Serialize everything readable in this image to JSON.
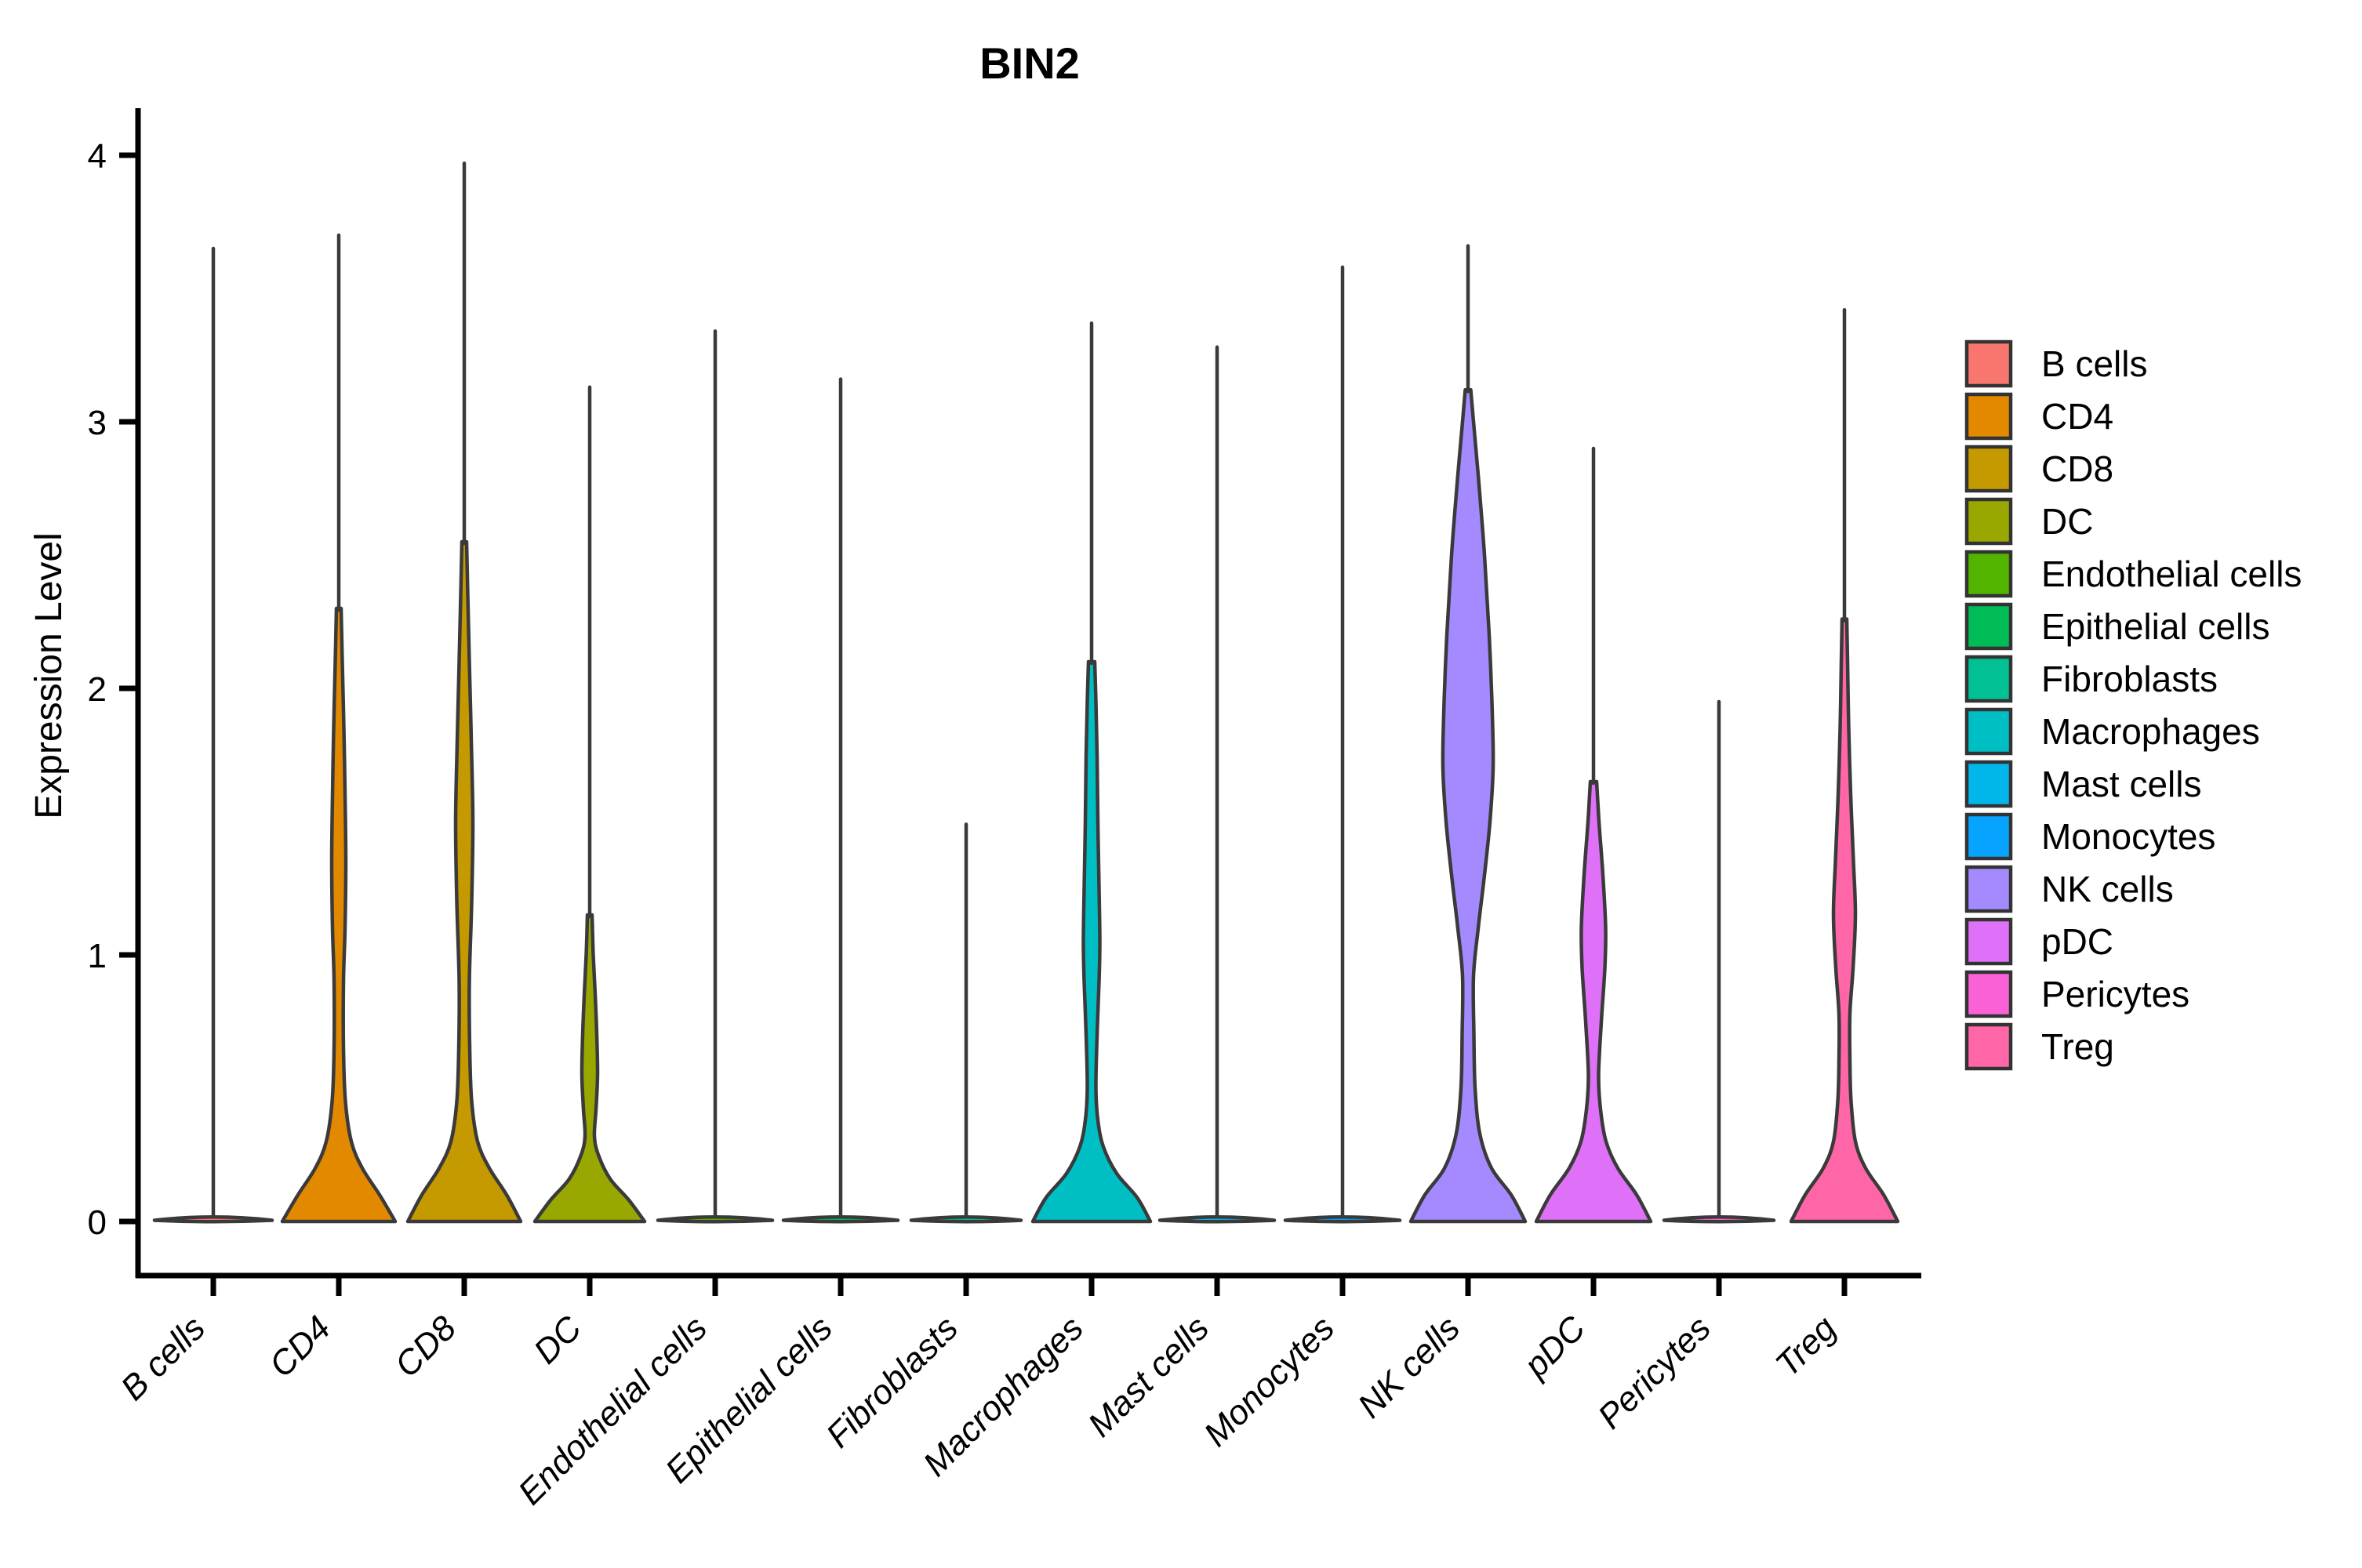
{
  "chart_data": {
    "type": "violin",
    "title": "BIN2",
    "xlabel": "",
    "ylabel": "Expression Level",
    "ylim": [
      0,
      4
    ],
    "yticks": [
      "0",
      "1",
      "2",
      "3",
      "4"
    ],
    "grid": false,
    "legend_position": "right",
    "categories": [
      "B cells",
      "CD4",
      "CD8",
      "DC",
      "Endothelial cells",
      "Epithelial cells",
      "Fibroblasts",
      "Macrophages",
      "Mast cells",
      "Monocytes",
      "NK cells",
      "pDC",
      "Pericytes",
      "Treg"
    ],
    "series": [
      {
        "name": "B cells",
        "color": "#F8766D",
        "max_expression": 3.65,
        "kind": "flat",
        "flat_halfwidth": 75,
        "profile": []
      },
      {
        "name": "CD4",
        "color": "#E38900",
        "max_expression": 3.7,
        "kind": "density",
        "profile": [
          [
            0,
            72
          ],
          [
            0.1,
            52
          ],
          [
            0.2,
            30
          ],
          [
            0.3,
            16
          ],
          [
            0.45,
            8.5
          ],
          [
            0.65,
            6
          ],
          [
            0.9,
            6
          ],
          [
            1.1,
            8
          ],
          [
            1.35,
            9
          ],
          [
            1.6,
            8
          ],
          [
            1.85,
            6.5
          ],
          [
            2.1,
            4.5
          ],
          [
            2.3,
            3
          ]
        ]
      },
      {
        "name": "CD8",
        "color": "#C49A00",
        "max_expression": 3.97,
        "kind": "density",
        "profile": [
          [
            0,
            72
          ],
          [
            0.1,
            54
          ],
          [
            0.2,
            32
          ],
          [
            0.3,
            17
          ],
          [
            0.45,
            9.5
          ],
          [
            0.65,
            7
          ],
          [
            0.9,
            6.5
          ],
          [
            1.2,
            9.5
          ],
          [
            1.5,
            11
          ],
          [
            1.8,
            9
          ],
          [
            2.1,
            6.5
          ],
          [
            2.35,
            4.5
          ],
          [
            2.55,
            3
          ]
        ]
      },
      {
        "name": "DC",
        "color": "#99A800",
        "max_expression": 3.13,
        "kind": "density",
        "profile": [
          [
            0,
            70
          ],
          [
            0.08,
            50
          ],
          [
            0.16,
            26
          ],
          [
            0.25,
            11
          ],
          [
            0.32,
            6
          ],
          [
            0.42,
            8
          ],
          [
            0.55,
            10
          ],
          [
            0.7,
            9
          ],
          [
            0.85,
            7
          ],
          [
            1.0,
            4.5
          ],
          [
            1.15,
            3
          ]
        ]
      },
      {
        "name": "Endothelial cells",
        "color": "#53B400",
        "max_expression": 3.34,
        "kind": "flat",
        "flat_halfwidth": 73,
        "profile": []
      },
      {
        "name": "Epithelial cells",
        "color": "#00BC56",
        "max_expression": 3.16,
        "kind": "flat",
        "flat_halfwidth": 73,
        "profile": []
      },
      {
        "name": "Fibroblasts",
        "color": "#00C094",
        "max_expression": 1.49,
        "kind": "flat",
        "flat_halfwidth": 70,
        "profile": []
      },
      {
        "name": "Macrophages",
        "color": "#00BFC4",
        "max_expression": 3.37,
        "kind": "density",
        "profile": [
          [
            0,
            75
          ],
          [
            0.09,
            58
          ],
          [
            0.18,
            32
          ],
          [
            0.28,
            15
          ],
          [
            0.38,
            8
          ],
          [
            0.5,
            5.5
          ],
          [
            0.7,
            7
          ],
          [
            0.9,
            9.5
          ],
          [
            1.05,
            10.5
          ],
          [
            1.25,
            9.5
          ],
          [
            1.5,
            8
          ],
          [
            1.75,
            7
          ],
          [
            1.95,
            5.5
          ],
          [
            2.1,
            4
          ]
        ]
      },
      {
        "name": "Mast cells",
        "color": "#00B6EB",
        "max_expression": 3.28,
        "kind": "flat",
        "flat_halfwidth": 73,
        "profile": []
      },
      {
        "name": "Monocytes",
        "color": "#06A4FF",
        "max_expression": 3.58,
        "kind": "flat",
        "flat_halfwidth": 73,
        "profile": []
      },
      {
        "name": "NK cells",
        "color": "#A58AFF",
        "max_expression": 3.66,
        "kind": "density",
        "profile": [
          [
            0,
            73
          ],
          [
            0.1,
            55
          ],
          [
            0.2,
            30
          ],
          [
            0.33,
            15
          ],
          [
            0.5,
            9
          ],
          [
            0.7,
            7.5
          ],
          [
            0.92,
            7
          ],
          [
            1.1,
            13
          ],
          [
            1.3,
            21
          ],
          [
            1.5,
            28
          ],
          [
            1.7,
            32
          ],
          [
            1.9,
            31
          ],
          [
            2.2,
            27
          ],
          [
            2.5,
            21
          ],
          [
            2.8,
            13
          ],
          [
            3.0,
            7
          ],
          [
            3.12,
            3.5
          ]
        ]
      },
      {
        "name": "pDC",
        "color": "#DF70F8",
        "max_expression": 2.9,
        "kind": "density",
        "profile": [
          [
            0,
            73
          ],
          [
            0.1,
            55
          ],
          [
            0.2,
            31
          ],
          [
            0.3,
            16
          ],
          [
            0.42,
            9
          ],
          [
            0.55,
            6.5
          ],
          [
            0.75,
            10
          ],
          [
            0.95,
            14.5
          ],
          [
            1.1,
            15.5
          ],
          [
            1.3,
            12
          ],
          [
            1.5,
            7
          ],
          [
            1.65,
            4
          ]
        ]
      },
      {
        "name": "Pericytes",
        "color": "#FB61D7",
        "max_expression": 1.95,
        "kind": "flat",
        "flat_halfwidth": 70,
        "profile": []
      },
      {
        "name": "Treg",
        "color": "#FF66A8",
        "max_expression": 3.42,
        "kind": "density",
        "profile": [
          [
            0,
            68
          ],
          [
            0.1,
            50
          ],
          [
            0.2,
            27
          ],
          [
            0.3,
            14
          ],
          [
            0.45,
            8.5
          ],
          [
            0.6,
            7
          ],
          [
            0.78,
            7
          ],
          [
            0.95,
            11
          ],
          [
            1.15,
            14
          ],
          [
            1.35,
            11.5
          ],
          [
            1.6,
            8
          ],
          [
            1.85,
            5.5
          ],
          [
            2.1,
            4
          ],
          [
            2.26,
            3
          ]
        ]
      }
    ],
    "legend_entries": [
      "B cells",
      "CD4",
      "CD8",
      "DC",
      "Endothelial cells",
      "Epithelial cells",
      "Fibroblasts",
      "Macrophages",
      "Mast cells",
      "Monocytes",
      "NK cells",
      "pDC",
      "Pericytes",
      "Treg"
    ]
  },
  "colors": {
    "outline": "#3A3A3A",
    "axis": "#000000",
    "background": "#FFFFFF"
  }
}
